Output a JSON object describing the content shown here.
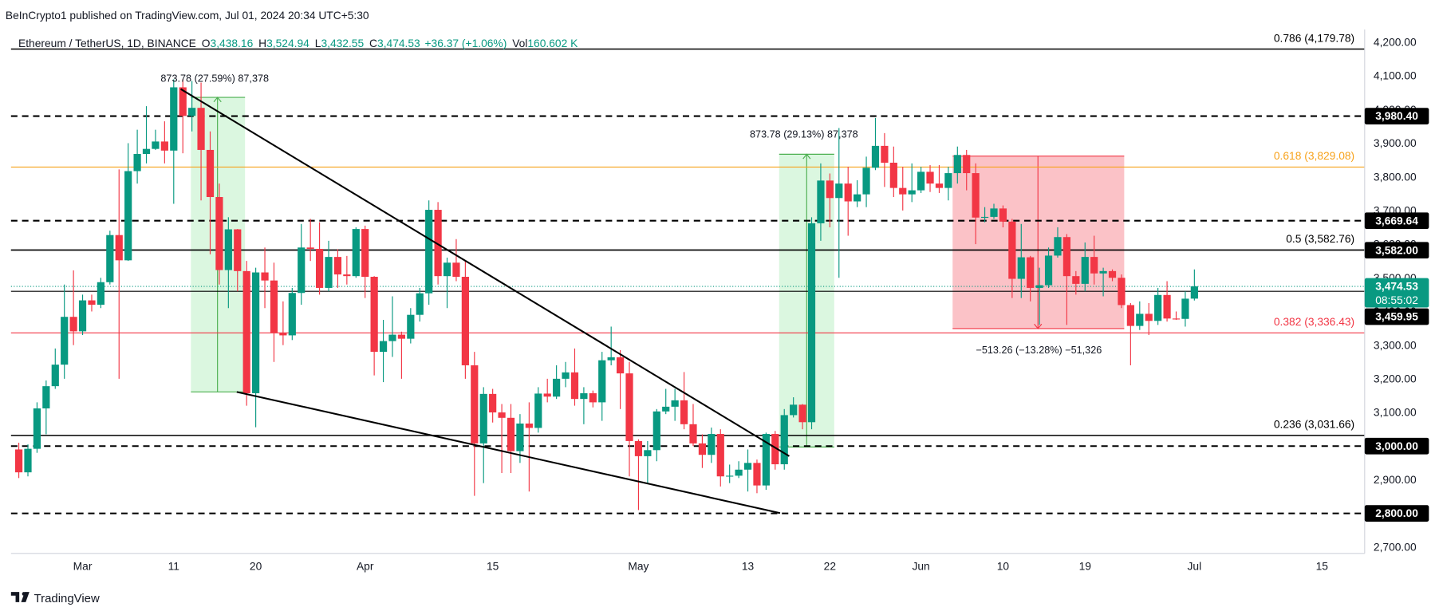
{
  "header": {
    "text": "BeInCrypto1 published on TradingView.com, Jul 01, 2024 20:34 UTC+5:30"
  },
  "chart_data": {
    "type": "candlestick",
    "symbol": "Ethereum / TetherUS, 1D, BINANCE",
    "ohlc_legend": [
      {
        "label": "O",
        "value": "3,438.16"
      },
      {
        "label": "H",
        "value": "3,524.94"
      },
      {
        "label": "L",
        "value": "3,432.55"
      },
      {
        "label": "C",
        "value": "3,474.53"
      }
    ],
    "change": "+36.37 (+1.06%)",
    "volume": {
      "label": "Vol",
      "value": "160.602 K"
    },
    "categories": [
      null,
      null,
      null,
      null,
      null,
      null,
      null,
      "Mar",
      null,
      null,
      null,
      null,
      null,
      null,
      null,
      null,
      null,
      "11",
      null,
      null,
      null,
      null,
      null,
      null,
      null,
      null,
      "20",
      null,
      null,
      null,
      null,
      null,
      null,
      null,
      null,
      null,
      null,
      null,
      "Apr",
      null,
      null,
      null,
      null,
      null,
      null,
      null,
      null,
      null,
      null,
      null,
      null,
      null,
      "15",
      null,
      null,
      null,
      null,
      null,
      null,
      null,
      null,
      null,
      null,
      null,
      null,
      null,
      null,
      null,
      "May",
      null,
      null,
      null,
      null,
      null,
      null,
      null,
      null,
      null,
      null,
      null,
      "13",
      null,
      null,
      null,
      null,
      null,
      null,
      null,
      null,
      "22",
      null,
      null,
      null,
      null,
      null,
      null,
      null,
      null,
      null,
      "Jun",
      null,
      null,
      null,
      null,
      null,
      null,
      null,
      null,
      "10",
      null,
      null,
      null,
      null,
      null,
      null,
      null,
      null,
      "19",
      null,
      null,
      null,
      null,
      null,
      null,
      null,
      null,
      null,
      null,
      null,
      "Jul",
      null,
      null,
      null,
      null,
      null,
      null,
      null,
      null,
      null,
      null,
      null,
      null,
      null,
      "15",
      null,
      null,
      null,
      null,
      null
    ],
    "open": [
      2990,
      2922,
      2992,
      3112,
      3178,
      3242,
      3384,
      3341,
      3433,
      3420,
      3487,
      3627,
      3552,
      3817,
      3868,
      3883,
      3905,
      3878,
      4066,
      3981,
      4005,
      3880,
      3740,
      3523,
      3644,
      3520,
      3157,
      3516,
      3492,
      3336,
      3329,
      3455,
      3590,
      3586,
      3470,
      3562,
      3510,
      3505,
      3645,
      3503,
      3280,
      3312,
      3331,
      3319,
      3390,
      3454,
      3702,
      3505,
      3545,
      3503,
      3240,
      3008,
      3155,
      3100,
      3084,
      2985,
      3067,
      3054,
      3156,
      3147,
      3200,
      3219,
      3140,
      3157,
      3130,
      3255,
      3264,
      3216,
      3015,
      2970,
      2988,
      3103,
      3117,
      3136,
      3065,
      3008,
      2974,
      3036,
      2910,
      2912,
      2930,
      2950,
      2883,
      3036,
      2946,
      3092,
      3123,
      3071,
      3662,
      3789,
      3737,
      3780,
      3727,
      3748,
      3827,
      3892,
      3842,
      3767,
      3748,
      3760,
      3815,
      3780,
      3767,
      3811,
      3865,
      3811,
      3679,
      3681,
      3706,
      3667,
      3497,
      3561,
      3470,
      3478,
      3566,
      3621,
      3505,
      3482,
      3562,
      3513,
      3520,
      3500,
      3419,
      3357,
      3393,
      3372,
      3449,
      3379,
      3378,
      3438.16,
      null,
      null,
      null,
      null,
      null,
      null,
      null,
      null,
      null,
      null,
      null,
      null,
      null,
      null,
      null,
      null,
      null,
      null,
      null
    ],
    "high": [
      3010,
      3005,
      3130,
      3195,
      3290,
      3480,
      3522,
      3450,
      3450,
      3500,
      3640,
      3822,
      3900,
      3940,
      4010,
      3940,
      3965,
      4090,
      4090,
      4085,
      4080,
      3935,
      3780,
      3680,
      3645,
      3550,
      3530,
      3590,
      3545,
      3430,
      3470,
      3660,
      3675,
      3665,
      3610,
      3585,
      3565,
      3650,
      3655,
      3505,
      3375,
      3445,
      3340,
      3410,
      3470,
      3730,
      3725,
      3560,
      3615,
      3550,
      3280,
      3175,
      3170,
      3125,
      3125,
      3095,
      3130,
      3175,
      3200,
      3240,
      3250,
      3290,
      3175,
      3165,
      3280,
      3355,
      3285,
      3250,
      3020,
      3015,
      3110,
      3170,
      3170,
      3220,
      3125,
      3035,
      3055,
      3050,
      2945,
      2955,
      2990,
      2960,
      3040,
      3045,
      3110,
      3145,
      3125,
      3680,
      3840,
      3810,
      3945,
      3830,
      3790,
      3860,
      3975,
      3930,
      3890,
      3830,
      3840,
      3830,
      3835,
      3835,
      3830,
      3890,
      3880,
      3840,
      3710,
      3720,
      3715,
      3675,
      3660,
      3565,
      3530,
      3590,
      3650,
      3630,
      3520,
      3605,
      3625,
      3530,
      3525,
      3510,
      3425,
      3430,
      3425,
      3470,
      3490,
      3400,
      3460,
      3524.94,
      null,
      null,
      null,
      null,
      null,
      null,
      null,
      null,
      null,
      null,
      null,
      null,
      null,
      null,
      null,
      null,
      null,
      null,
      null
    ],
    "low": [
      2905,
      2910,
      2980,
      3035,
      3170,
      3200,
      3300,
      3330,
      3400,
      3410,
      3480,
      3200,
      3550,
      3780,
      3840,
      3880,
      3840,
      3720,
      3870,
      3935,
      3730,
      3570,
      3480,
      3410,
      3460,
      3120,
      3056,
      3410,
      3250,
      3300,
      3315,
      3420,
      3550,
      3450,
      3460,
      3470,
      3480,
      3500,
      3440,
      3210,
      3190,
      3265,
      3200,
      3305,
      3370,
      3420,
      3480,
      3410,
      3490,
      3200,
      2852,
      2890,
      3070,
      2920,
      2920,
      2950,
      2865,
      3040,
      3130,
      3140,
      3175,
      3120,
      3065,
      3115,
      3075,
      3240,
      3110,
      2910,
      2810,
      2890,
      2955,
      3095,
      3075,
      3050,
      3000,
      2935,
      2950,
      2880,
      2890,
      2905,
      2865,
      2860,
      2870,
      2930,
      2930,
      3085,
      3050,
      3050,
      3610,
      3650,
      3500,
      3625,
      3710,
      3710,
      3820,
      3770,
      3740,
      3700,
      3725,
      3752,
      3755,
      3752,
      3730,
      3780,
      3760,
      3600,
      3665,
      3675,
      3650,
      3440,
      3440,
      3430,
      3360,
      3470,
      3560,
      3360,
      3450,
      3460,
      3480,
      3445,
      3490,
      3410,
      3240,
      3345,
      3330,
      3360,
      3370,
      3375,
      3355,
      3432.55,
      null,
      null,
      null,
      null,
      null,
      null,
      null,
      null,
      null,
      null,
      null,
      null,
      null,
      null,
      null,
      null,
      null,
      null,
      null
    ],
    "close": [
      2922,
      2992,
      3112,
      3178,
      3242,
      3384,
      3341,
      3433,
      3420,
      3487,
      3627,
      3552,
      3817,
      3868,
      3883,
      3905,
      3878,
      4066,
      3981,
      4005,
      3880,
      3740,
      3523,
      3644,
      3520,
      3157,
      3516,
      3492,
      3336,
      3329,
      3455,
      3590,
      3586,
      3470,
      3562,
      3510,
      3505,
      3645,
      3503,
      3280,
      3312,
      3331,
      3319,
      3390,
      3454,
      3702,
      3505,
      3545,
      3503,
      3240,
      3008,
      3155,
      3100,
      3084,
      2985,
      3067,
      3054,
      3156,
      3147,
      3200,
      3219,
      3140,
      3157,
      3130,
      3255,
      3264,
      3216,
      3015,
      2970,
      2988,
      3103,
      3117,
      3136,
      3065,
      3008,
      2974,
      3036,
      2910,
      2912,
      2930,
      2950,
      2883,
      3036,
      2946,
      3092,
      3123,
      3071,
      3662,
      3789,
      3737,
      3780,
      3727,
      3748,
      3827,
      3892,
      3842,
      3767,
      3748,
      3760,
      3815,
      3780,
      3767,
      3811,
      3865,
      3811,
      3679,
      3681,
      3706,
      3667,
      3497,
      3561,
      3470,
      3478,
      3566,
      3621,
      3505,
      3482,
      3562,
      3513,
      3520,
      3500,
      3419,
      3357,
      3393,
      3372,
      3449,
      3379,
      3378,
      3438,
      3474.53,
      null,
      null,
      null,
      null,
      null,
      null,
      null,
      null,
      null,
      null,
      null,
      null,
      null,
      null,
      null,
      null,
      null,
      null,
      null
    ],
    "up_color": "#089981",
    "down_color": "#f23645",
    "ylim": [
      2681,
      4238
    ],
    "yticks": [
      {
        "value": 2700,
        "label": "2,700.00"
      },
      {
        "value": 2800,
        "label": "2,800.00"
      },
      {
        "value": 2900,
        "label": "2,900.00"
      },
      {
        "value": 3000,
        "label": "3,000.00"
      },
      {
        "value": 3100,
        "label": "3,100.00"
      },
      {
        "value": 3200,
        "label": "3,200.00"
      },
      {
        "value": 3300,
        "label": "3,300.00"
      },
      {
        "value": 3400,
        "label": "3,400.00"
      },
      {
        "value": 3500,
        "label": "3,500.00"
      },
      {
        "value": 3600,
        "label": "3,600.00"
      },
      {
        "value": 3700,
        "label": "3,700.00"
      },
      {
        "value": 3800,
        "label": "3,800.00"
      },
      {
        "value": 3900,
        "label": "3,900.00"
      },
      {
        "value": 4000,
        "label": "4,000.00"
      },
      {
        "value": 4100,
        "label": "4,100.00"
      },
      {
        "value": 4200,
        "label": "4,200.00"
      }
    ],
    "grid": false,
    "fib_levels": [
      {
        "value": 4179.78,
        "label": "0.786 (4,179.78)",
        "color": "#000000"
      },
      {
        "value": 3829.08,
        "label": "0.618 (3,829.08)",
        "color": "#f7a21b"
      },
      {
        "value": 3582.76,
        "label": "0.5 (3,582.76)",
        "color": "#000000"
      },
      {
        "value": 3336.43,
        "label": "0.382 (3,336.43)",
        "color": "#f23645"
      },
      {
        "value": 3031.66,
        "label": "0.236 (3,031.66)",
        "color": "#000000"
      }
    ],
    "price_labels": [
      {
        "value": 3980.4,
        "label": "3,980.40",
        "line": "dashed"
      },
      {
        "value": 3669.64,
        "label": "3,669.64",
        "line": "dashed"
      },
      {
        "value": 3582,
        "label": "3,582.00",
        "line": "solid"
      },
      {
        "value": 3459.95,
        "label": "3,459.95",
        "line": "solid"
      },
      {
        "value": 3000,
        "label": "3,000.00",
        "line": "dashed"
      },
      {
        "value": 2800,
        "label": "2,800.00",
        "line": "dashed"
      }
    ],
    "last_price": {
      "value": 3474.53,
      "label": "3,474.53",
      "countdown": "08:55:02",
      "color": "#089981"
    },
    "annotations": [
      {
        "text": "873.78 (27.59%) 87,378"
      },
      {
        "text": "873.78 (29.13%) 87,378"
      },
      {
        "text": "−513.26 (−13.28%) −51,326"
      }
    ]
  },
  "footer": {
    "brand": "TradingView"
  }
}
